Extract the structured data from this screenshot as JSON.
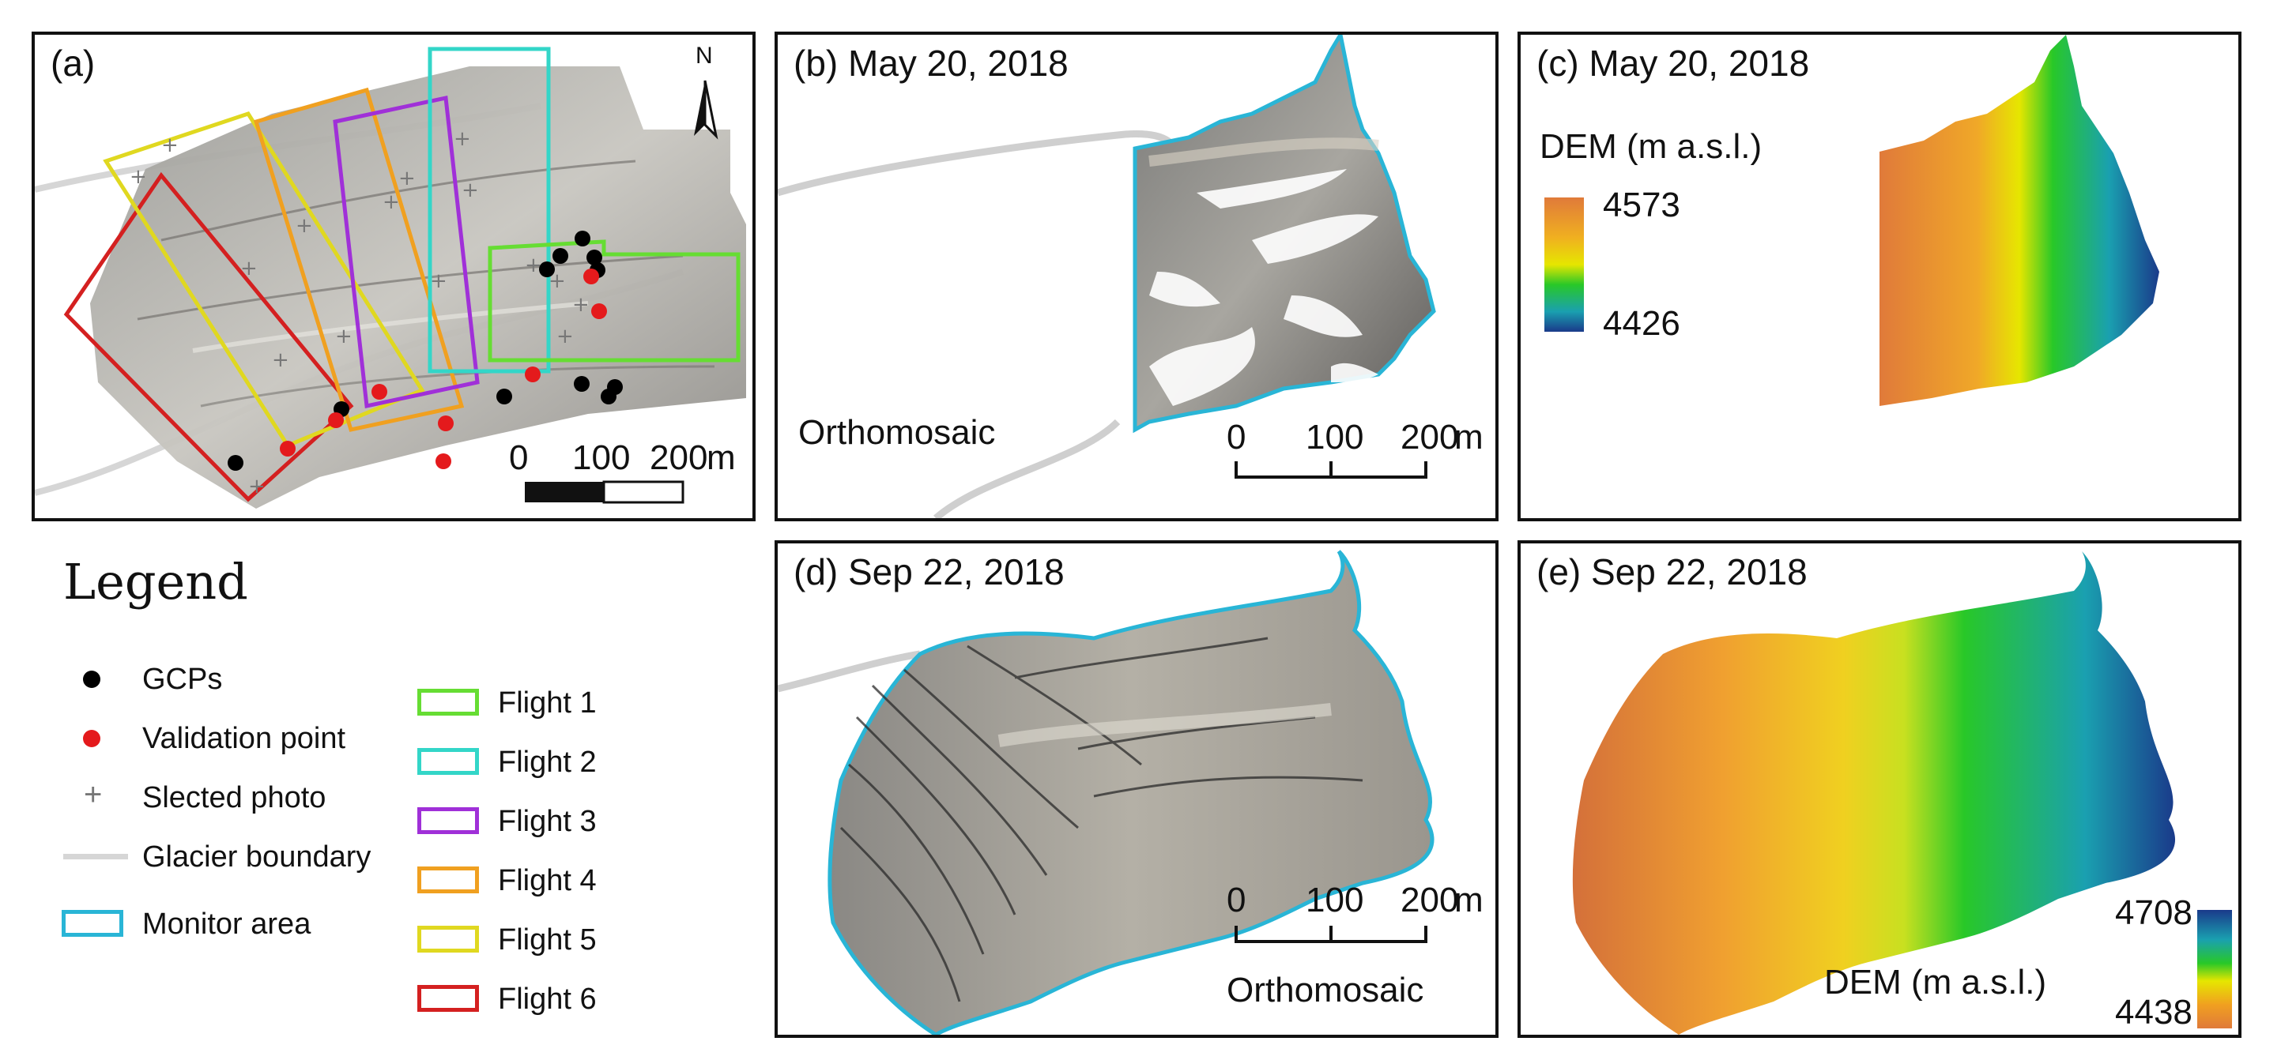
{
  "panels": {
    "a": {
      "label": "(a)",
      "north": "N",
      "scale": {
        "ticks": [
          "0",
          "100",
          "200"
        ],
        "unit": "m"
      }
    },
    "b": {
      "label": "(b) May 20, 2018",
      "caption": "Orthomosaic",
      "scale": {
        "ticks": [
          "0",
          "100",
          "200"
        ],
        "unit": "m"
      }
    },
    "c": {
      "label": "(c) May 20, 2018",
      "legend_title": "DEM (m a.s.l.)",
      "max": "4573",
      "min": "4426"
    },
    "d": {
      "label": "(d) Sep 22, 2018",
      "caption": "Orthomosaic",
      "scale": {
        "ticks": [
          "0",
          "100",
          "200"
        ],
        "unit": "m"
      }
    },
    "e": {
      "label": "(e) Sep 22, 2018",
      "legend_title": "DEM (m a.s.l.)",
      "max": "4708",
      "min": "4438"
    }
  },
  "legend": {
    "title": "Legend",
    "points": [
      {
        "label": "GCPs",
        "color": "#000000"
      },
      {
        "label": "Validation point",
        "color": "#e41a1c"
      },
      {
        "label": "Slected photo",
        "symbol": "+"
      },
      {
        "label": "Glacier boundary",
        "color": "#d6d6d6"
      },
      {
        "label": "Monitor area",
        "color": "#29b5d6"
      }
    ],
    "flights": [
      {
        "label": "Flight 1",
        "color": "#66dd33"
      },
      {
        "label": "Flight 2",
        "color": "#33d6c8"
      },
      {
        "label": "Flight 3",
        "color": "#a030d8"
      },
      {
        "label": "Flight 4",
        "color": "#f0a020"
      },
      {
        "label": "Flight 5",
        "color": "#e0d820"
      },
      {
        "label": "Flight 6",
        "color": "#d42020"
      }
    ]
  }
}
